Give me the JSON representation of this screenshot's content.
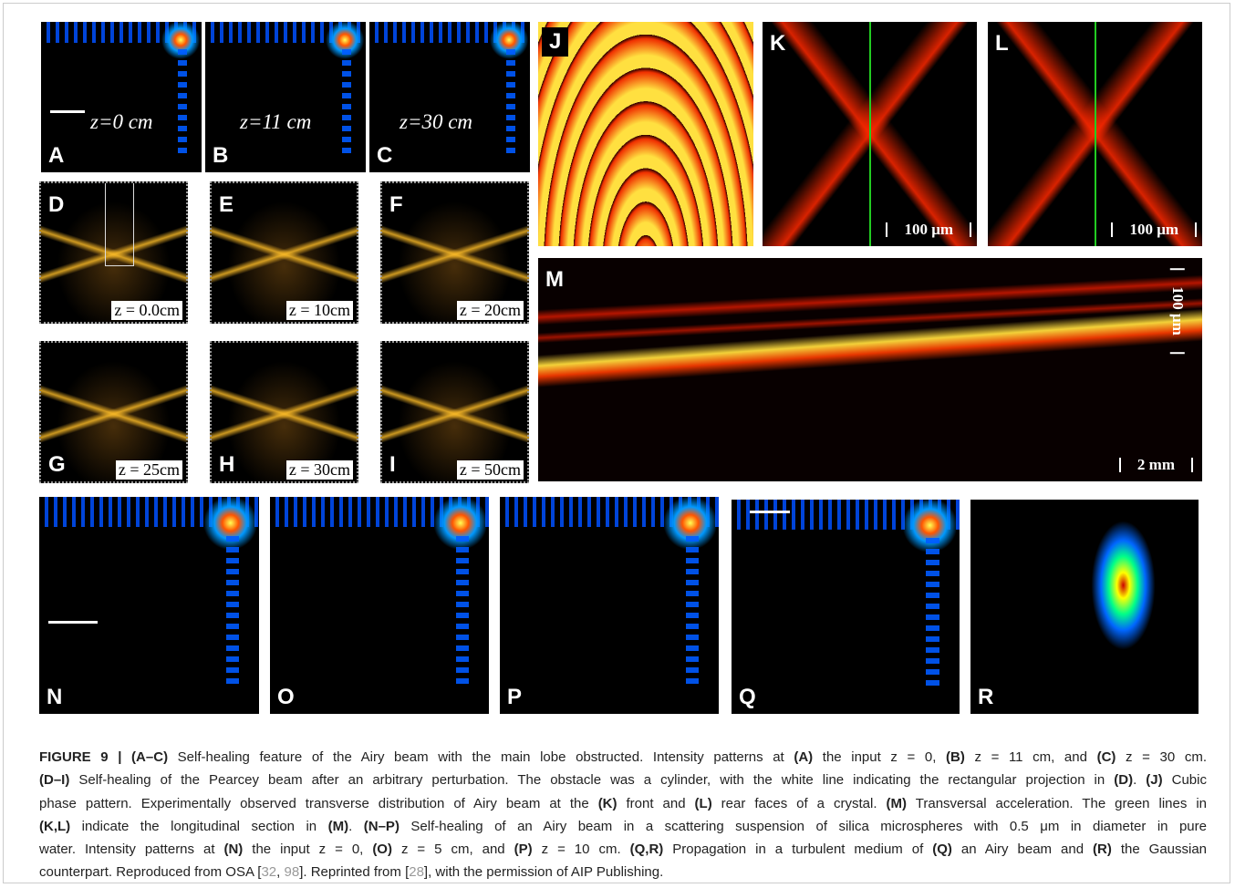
{
  "panels": [
    {
      "letter": "A",
      "label": "z=0 cm"
    },
    {
      "letter": "B",
      "label": "z=11 cm"
    },
    {
      "letter": "C",
      "label": "z=30 cm"
    },
    {
      "letter": "D",
      "label": "z = 0.0cm"
    },
    {
      "letter": "E",
      "label": "z = 10cm"
    },
    {
      "letter": "F",
      "label": "z = 20cm"
    },
    {
      "letter": "G",
      "label": "z = 25cm"
    },
    {
      "letter": "H",
      "label": "z = 30cm"
    },
    {
      "letter": "I",
      "label": "z = 50cm"
    },
    {
      "letter": "J"
    },
    {
      "letter": "K",
      "label": "100 μm"
    },
    {
      "letter": "L",
      "label": "100 μm"
    },
    {
      "letter": "M",
      "label": "2 mm",
      "label2": "100 μm"
    },
    {
      "letter": "N"
    },
    {
      "letter": "O"
    },
    {
      "letter": "P"
    },
    {
      "letter": "Q"
    },
    {
      "letter": "R"
    }
  ],
  "caption": [
    [
      {
        "text": "FIGURE 9 | (A–C)",
        "bold": true
      },
      {
        "text": " Self-healing feature of the Airy beam with the main lobe obstructed. Intensity patterns at "
      },
      {
        "text": "(A)",
        "bold": true
      },
      {
        "text": " the input z = 0, "
      },
      {
        "text": "(B)",
        "bold": true
      },
      {
        "text": " z = 11 cm, and "
      },
      {
        "text": "(C)",
        "bold": true
      },
      {
        "text": " z = 30 cm."
      }
    ],
    [
      {
        "text": "(D–I)",
        "bold": true
      },
      {
        "text": " Self-healing of the Pearcey beam after an arbitrary perturbation. The obstacle was a cylinder, with the white line indicating the rectangular projection in "
      },
      {
        "text": "(D)",
        "bold": true
      },
      {
        "text": ". "
      },
      {
        "text": "(J)",
        "bold": true
      },
      {
        "text": " Cubic"
      }
    ],
    [
      {
        "text": "phase pattern. Experimentally observed transverse distribution of Airy beam at the "
      },
      {
        "text": "(K)",
        "bold": true
      },
      {
        "text": " front and "
      },
      {
        "text": "(L)",
        "bold": true
      },
      {
        "text": " rear faces of a crystal. "
      },
      {
        "text": "(M)",
        "bold": true
      },
      {
        "text": " Transversal acceleration. The green lines in"
      }
    ],
    [
      {
        "text": "(K,L)",
        "bold": true
      },
      {
        "text": " indicate the longitudinal section in "
      },
      {
        "text": "(M)",
        "bold": true
      },
      {
        "text": ". "
      },
      {
        "text": "(N–P)",
        "bold": true
      },
      {
        "text": " Self-healing of an Airy beam in a scattering suspension of silica microspheres with 0.5 μm in diameter in pure"
      }
    ],
    [
      {
        "text": "water. Intensity patterns at "
      },
      {
        "text": "(N)",
        "bold": true
      },
      {
        "text": " the input z = 0, "
      },
      {
        "text": "(O)",
        "bold": true
      },
      {
        "text": " z = 5 cm, and "
      },
      {
        "text": "(P)",
        "bold": true
      },
      {
        "text": " z = 10 cm. "
      },
      {
        "text": "(Q,R)",
        "bold": true
      },
      {
        "text": " Propagation in a turbulent medium of "
      },
      {
        "text": "(Q)",
        "bold": true
      },
      {
        "text": " an Airy beam and "
      },
      {
        "text": "(R)",
        "bold": true
      },
      {
        "text": " the Gaussian"
      }
    ],
    [
      {
        "text": "counterpart. Reproduced from OSA ["
      },
      {
        "text": "32",
        "ref": true
      },
      {
        "text": ", "
      },
      {
        "text": "98",
        "ref": true
      },
      {
        "text": "]. Reprinted from ["
      },
      {
        "text": "28",
        "ref": true
      },
      {
        "text": "], with the permission of AIP Publishing."
      }
    ]
  ]
}
